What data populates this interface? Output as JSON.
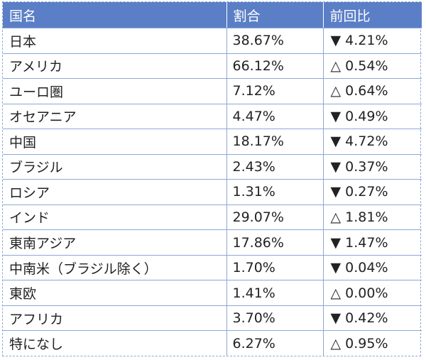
{
  "table": {
    "headers": [
      "国名",
      "割合",
      "前回比"
    ],
    "rows": [
      [
        "日本",
        "38.67%",
        "▼ 4.21%"
      ],
      [
        "アメリカ",
        "66.12%",
        "△ 0.54%"
      ],
      [
        "ユーロ圏",
        "7.12%",
        "△ 0.64%"
      ],
      [
        "オセアニア",
        "4.47%",
        "▼ 0.49%"
      ],
      [
        "中国",
        "18.17%",
        "▼ 4.72%"
      ],
      [
        "ブラジル",
        "2.43%",
        "▼ 0.37%"
      ],
      [
        "ロシア",
        "1.31%",
        "▼ 0.27%"
      ],
      [
        "インド",
        "29.07%",
        "△ 1.81%"
      ],
      [
        "東南アジア",
        "17.86%",
        "▼ 1.47%"
      ],
      [
        "中南米（ブラジル除く）",
        "1.70%",
        "▼ 0.04%"
      ],
      [
        "東欧",
        "1.41%",
        "△ 0.00%"
      ],
      [
        "アフリカ",
        "3.70%",
        "▼ 0.42%"
      ],
      [
        "特になし",
        "6.27%",
        "△ 0.95%"
      ]
    ]
  },
  "colors": {
    "header_bg": "#5b7fc6",
    "header_text": "#ffffff",
    "grid_line": "#8aa9d4"
  }
}
